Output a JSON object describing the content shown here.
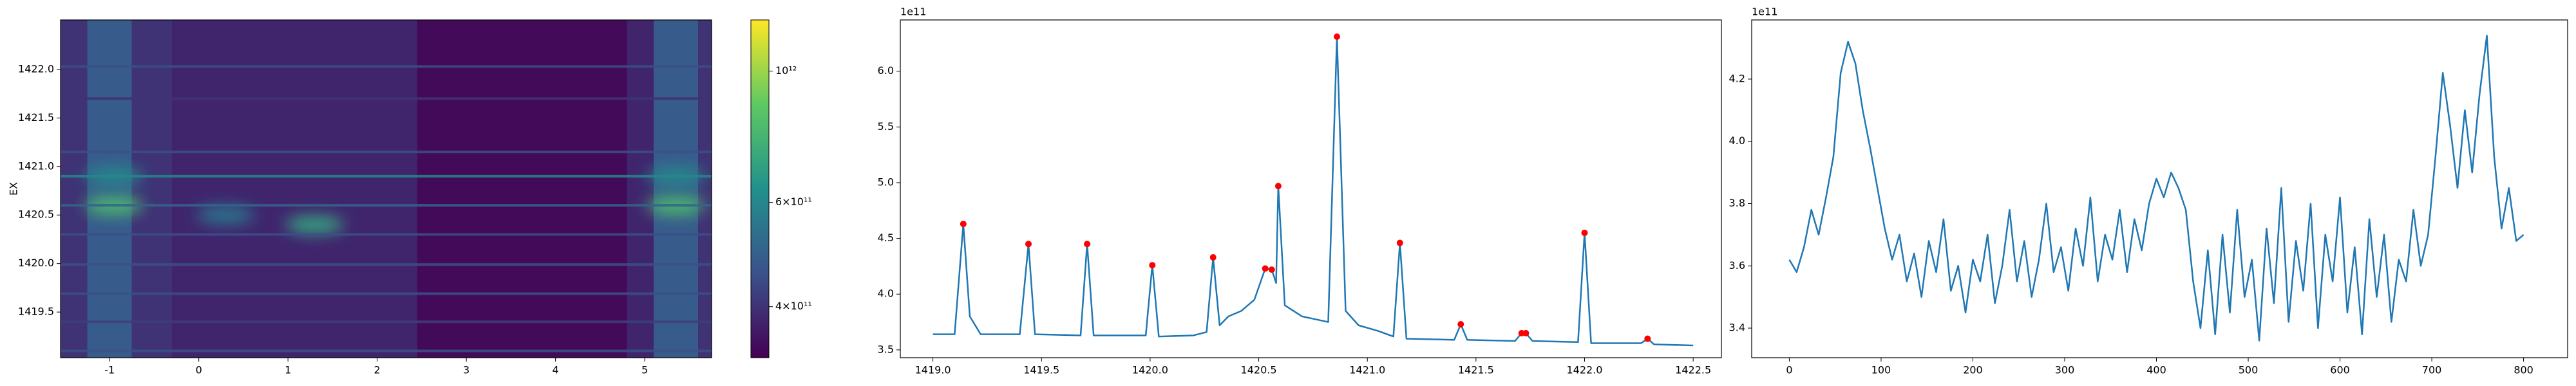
{
  "chart_data": [
    {
      "type": "heatmap",
      "ylabel": "EX",
      "xlim": [
        -1.55,
        5.75
      ],
      "ylim": [
        1419.03,
        1422.51
      ],
      "xticks": [
        -1,
        0,
        1,
        2,
        3,
        4,
        5
      ],
      "yticks": [
        1419.5,
        {
          "value": 1420.0,
          "label": "1420.0"
        },
        1420.5,
        {
          "value": 1421.0,
          "label": "1421.0"
        },
        1421.5,
        {
          "value": 1422.0,
          "label": "1422.0"
        }
      ],
      "columns": [
        {
          "x": [
            -1.55,
            -1.25
          ],
          "value": 400000000000
        },
        {
          "x": [
            -1.25,
            -0.75
          ],
          "value": 480000000000
        },
        {
          "x": [
            -0.75,
            -0.3
          ],
          "value": 400000000000
        },
        {
          "x": [
            -0.3,
            2.45
          ],
          "value": 380000000000
        },
        {
          "x": [
            2.45,
            4.8
          ],
          "value": 340000000000
        },
        {
          "x": [
            4.8,
            5.1
          ],
          "value": 380000000000
        },
        {
          "x": [
            5.1,
            5.6
          ],
          "value": 480000000000
        },
        {
          "x": [
            5.6,
            5.75
          ],
          "value": 400000000000
        }
      ],
      "rows": [
        {
          "y": 1422.03,
          "value": 450000000000
        },
        {
          "y": 1421.7,
          "value": 400000000000
        },
        {
          "y": 1421.15,
          "value": 450000000000
        },
        {
          "y": 1420.9,
          "value": 600000000000
        },
        {
          "y": 1420.6,
          "value": 500000000000
        },
        {
          "y": 1420.3,
          "value": 450000000000
        },
        {
          "y": 1419.99,
          "value": 450000000000
        },
        {
          "y": 1419.69,
          "value": 450000000000
        },
        {
          "y": 1419.4,
          "value": 420000000000
        },
        {
          "y": 1419.1,
          "value": 450000000000
        }
      ],
      "blobs": [
        {
          "x": -0.95,
          "y": 1420.6,
          "value": 800000000000
        },
        {
          "x": -0.95,
          "y": 1420.9,
          "value": 600000000000
        },
        {
          "x": 0.3,
          "y": 1420.5,
          "value": 550000000000
        },
        {
          "x": 1.3,
          "y": 1420.4,
          "value": 700000000000
        },
        {
          "x": 5.35,
          "y": 1420.6,
          "value": 800000000000
        },
        {
          "x": 5.35,
          "y": 1420.9,
          "value": 600000000000
        }
      ],
      "colorbar": {
        "log": true,
        "lim": [
          328000000000,
          1220000000000
        ],
        "ticks": [
          {
            "value": 400000000000,
            "label": "4×10¹¹"
          },
          {
            "value": 600000000000,
            "label": "6×10¹¹"
          },
          {
            "value": 1000000000000,
            "label": "10¹²"
          }
        ]
      }
    },
    {
      "type": "line",
      "offset_label": "1e11",
      "xlim": [
        1418.85,
        1422.63
      ],
      "ylim": [
        3.43,
        6.46
      ],
      "xticks": [
        {
          "value": 1419.0,
          "label": "1419.0"
        },
        1419.5,
        {
          "value": 1420.0,
          "label": "1420.0"
        },
        1420.5,
        {
          "value": 1421.0,
          "label": "1421.0"
        },
        1421.5,
        {
          "value": 1422.0,
          "label": "1422.0"
        },
        1422.5
      ],
      "yticks": [
        3.5,
        {
          "value": 4.0,
          "label": "4.0"
        },
        4.5,
        {
          "value": 5.0,
          "label": "5.0"
        },
        5.5,
        {
          "value": 6.0,
          "label": "6.0"
        }
      ],
      "line": {
        "color": "#1f77b4",
        "x": [
          1419.0,
          1419.1,
          1419.14,
          1419.17,
          1419.22,
          1419.4,
          1419.44,
          1419.47,
          1419.68,
          1419.71,
          1419.74,
          1419.98,
          1420.01,
          1420.04,
          1420.2,
          1420.26,
          1420.29,
          1420.32,
          1420.36,
          1420.42,
          1420.48,
          1420.53,
          1420.56,
          1420.58,
          1420.59,
          1420.62,
          1420.7,
          1420.82,
          1420.86,
          1420.9,
          1420.96,
          1421.05,
          1421.12,
          1421.15,
          1421.18,
          1421.4,
          1421.43,
          1421.46,
          1421.68,
          1421.71,
          1421.73,
          1421.76,
          1421.97,
          1422.0,
          1422.03,
          1422.26,
          1422.29,
          1422.32,
          1422.5
        ],
        "y": [
          3.64,
          3.64,
          4.63,
          3.8,
          3.64,
          3.64,
          4.45,
          3.64,
          3.63,
          4.45,
          3.63,
          3.63,
          4.26,
          3.62,
          3.63,
          3.66,
          4.33,
          3.72,
          3.8,
          3.85,
          3.95,
          4.23,
          4.22,
          4.1,
          4.97,
          3.9,
          3.8,
          3.75,
          6.31,
          3.85,
          3.72,
          3.67,
          3.62,
          4.46,
          3.6,
          3.59,
          3.73,
          3.59,
          3.58,
          3.65,
          3.65,
          3.58,
          3.57,
          4.55,
          3.56,
          3.56,
          3.6,
          3.55,
          3.54
        ]
      },
      "peaks": {
        "color": "#ff0000",
        "x": [
          1419.14,
          1419.44,
          1419.71,
          1420.01,
          1420.29,
          1420.53,
          1420.56,
          1420.59,
          1420.86,
          1421.15,
          1421.43,
          1421.71,
          1421.73,
          1422.0,
          1422.29
        ],
        "y": [
          4.63,
          4.45,
          4.45,
          4.26,
          4.33,
          4.23,
          4.22,
          4.97,
          6.31,
          4.46,
          3.73,
          3.65,
          3.65,
          4.55,
          3.6
        ]
      }
    },
    {
      "type": "line",
      "offset_label": "1e11",
      "xlim": [
        -41,
        848
      ],
      "ylim": [
        3.305,
        4.39
      ],
      "xticks": [
        0,
        100,
        200,
        300,
        400,
        500,
        600,
        700,
        800
      ],
      "yticks": [
        3.4,
        3.6,
        3.8,
        {
          "value": 4.0,
          "label": "4.0"
        },
        4.2
      ],
      "line": {
        "color": "#1f77b4",
        "x": [
          0,
          8,
          16,
          24,
          32,
          40,
          48,
          56,
          64,
          72,
          80,
          88,
          96,
          104,
          112,
          120,
          128,
          136,
          144,
          152,
          160,
          168,
          176,
          184,
          192,
          200,
          208,
          216,
          224,
          232,
          240,
          248,
          256,
          264,
          272,
          280,
          288,
          296,
          304,
          312,
          320,
          328,
          336,
          344,
          352,
          360,
          368,
          376,
          384,
          392,
          400,
          408,
          416,
          424,
          432,
          440,
          448,
          456,
          464,
          472,
          480,
          488,
          496,
          504,
          512,
          520,
          528,
          536,
          544,
          552,
          560,
          568,
          576,
          584,
          592,
          600,
          608,
          616,
          624,
          632,
          640,
          648,
          656,
          664,
          672,
          680,
          688,
          696,
          704,
          712,
          720,
          728,
          736,
          744,
          752,
          760,
          768,
          776,
          784,
          792,
          800
        ],
        "y": [
          3.62,
          3.58,
          3.66,
          3.78,
          3.7,
          3.82,
          3.95,
          4.22,
          4.32,
          4.25,
          4.1,
          3.98,
          3.85,
          3.72,
          3.62,
          3.7,
          3.55,
          3.64,
          3.5,
          3.68,
          3.58,
          3.75,
          3.52,
          3.6,
          3.45,
          3.62,
          3.55,
          3.7,
          3.48,
          3.6,
          3.78,
          3.55,
          3.68,
          3.5,
          3.62,
          3.8,
          3.58,
          3.66,
          3.52,
          3.72,
          3.6,
          3.82,
          3.55,
          3.7,
          3.62,
          3.78,
          3.58,
          3.75,
          3.65,
          3.8,
          3.88,
          3.82,
          3.9,
          3.85,
          3.78,
          3.55,
          3.4,
          3.65,
          3.38,
          3.7,
          3.45,
          3.78,
          3.5,
          3.62,
          3.36,
          3.72,
          3.48,
          3.85,
          3.42,
          3.68,
          3.52,
          3.8,
          3.4,
          3.7,
          3.55,
          3.82,
          3.45,
          3.66,
          3.38,
          3.75,
          3.5,
          3.7,
          3.42,
          3.62,
          3.55,
          3.78,
          3.6,
          3.7,
          3.95,
          4.22,
          4.05,
          3.85,
          4.1,
          3.9,
          4.15,
          4.34,
          3.95,
          3.72,
          3.85,
          3.68,
          3.7
        ]
      }
    }
  ]
}
